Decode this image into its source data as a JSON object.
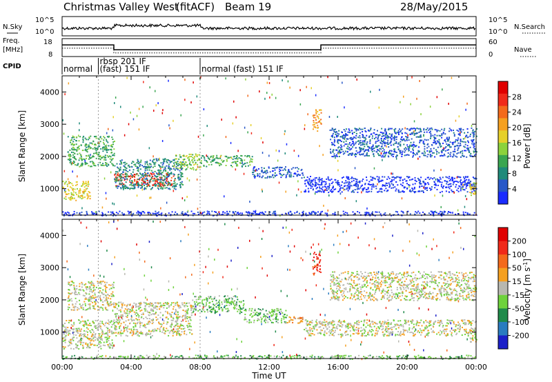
{
  "header": {
    "station": "Christmas Valley West",
    "mode": "(fitACF)",
    "beam": "Beam 19",
    "date": "28/May/2015"
  },
  "strip": {
    "nsky_label": "N.Sky",
    "nsky_ticks": [
      "10^5",
      "10^0"
    ],
    "nsearch_label": "N.Search",
    "nsearch_ticks": [
      "10^5",
      "10^0"
    ],
    "freq_label": "Freq.",
    "freq_unit": "[MHz]",
    "freq_ticks": [
      "18",
      "8"
    ],
    "nave_label": "Nave",
    "nave_ticks": [
      "60",
      "0"
    ],
    "cpid_label": "CPID",
    "cpid_segments": [
      {
        "start": 0.0,
        "end": 2.1,
        "label": "normal"
      },
      {
        "start": 2.1,
        "end": 8.0,
        "label": "rbsp 201 IF",
        "label2": "(fast) 151 IF"
      },
      {
        "start": 8.0,
        "end": 24.0,
        "label": "normal (fast) 151 IF"
      }
    ],
    "freq_mhz": [
      {
        "start": 0.0,
        "end": 3.0,
        "value": 14.5
      },
      {
        "start": 3.0,
        "end": 15.0,
        "value": 11.8
      },
      {
        "start": 15.0,
        "end": 24.0,
        "value": 14.5
      }
    ],
    "nave": [
      {
        "start": 0.0,
        "end": 3.0,
        "value": 28
      },
      {
        "start": 3.0,
        "end": 15.0,
        "value": 12
      },
      {
        "start": 15.0,
        "end": 24.0,
        "value": 28
      }
    ]
  },
  "chart_data": [
    {
      "type": "heatmap",
      "panel": "power",
      "xlabel": "Time UT",
      "ylabel": "Slant Range [km]",
      "xlim": [
        0,
        24
      ],
      "ylim": [
        180,
        4500
      ],
      "yticks": [
        1000,
        2000,
        3000,
        4000
      ],
      "colorbar": {
        "label": "Power [dB]",
        "ticks": [
          "4",
          "8",
          "12",
          "16",
          "20",
          "24",
          "28"
        ],
        "colors": [
          "#1a2cff",
          "#2858c8",
          "#1f8a7a",
          "#3aa650",
          "#8cd23c",
          "#e6d02a",
          "#f5a020",
          "#f36a1c",
          "#f02a1a",
          "#e00000"
        ]
      },
      "regions": [
        {
          "t0": 0.0,
          "t1": 1.6,
          "r0": 650,
          "r1": 1250,
          "level": 5
        },
        {
          "t0": 0.3,
          "t1": 3.0,
          "r0": 1700,
          "r1": 2650,
          "level": 3
        },
        {
          "t0": 3.0,
          "t1": 6.5,
          "r0": 1100,
          "r1": 1500,
          "level": 8
        },
        {
          "t0": 3.0,
          "t1": 7.0,
          "r0": 1000,
          "r1": 1950,
          "level": 2
        },
        {
          "t0": 6.5,
          "t1": 8.0,
          "r0": 1600,
          "r1": 2100,
          "level": 4
        },
        {
          "t0": 8.0,
          "t1": 11.0,
          "r0": 1700,
          "r1": 2050,
          "level": 3
        },
        {
          "t0": 11.0,
          "t1": 14.0,
          "r0": 1350,
          "r1": 1700,
          "level": 1
        },
        {
          "t0": 14.0,
          "t1": 24.0,
          "r0": 900,
          "r1": 1400,
          "level": 0
        },
        {
          "t0": 15.5,
          "t1": 24.0,
          "r0": 2000,
          "r1": 2900,
          "level": 1
        },
        {
          "t0": 14.5,
          "t1": 15.0,
          "r0": 2800,
          "r1": 3500,
          "level": 6
        },
        {
          "t0": 23.6,
          "t1": 24.0,
          "r0": 800,
          "r1": 1200,
          "level": 5
        },
        {
          "t0": 0.0,
          "t1": 24.0,
          "r0": 180,
          "r1": 320,
          "level": 0
        }
      ]
    },
    {
      "type": "heatmap",
      "panel": "velocity",
      "xlabel": "Time UT",
      "ylabel": "Slant Range [km]",
      "xlim": [
        0,
        24
      ],
      "ylim": [
        180,
        4500
      ],
      "yticks": [
        1000,
        2000,
        3000,
        4000
      ],
      "xticks": [
        "00:00",
        "04:00",
        "08:00",
        "12:00",
        "16:00",
        "20:00",
        "00:00"
      ],
      "colorbar": {
        "label": "Velocity [m s",
        "label_sup": "-1",
        "label_end": "]",
        "ticks": [
          "200",
          "100",
          "50",
          "15",
          "-15",
          "-50",
          "-100",
          "-200"
        ],
        "colors": [
          "#1c20c8",
          "#2a7cc0",
          "#1f8a4a",
          "#6ed23c",
          "#b8b8b0",
          "#f5a020",
          "#f36a1c",
          "#f02a1a",
          "#e00000"
        ]
      },
      "regions": [
        {
          "t0": 0.0,
          "t1": 3.0,
          "r0": 500,
          "r1": 1400,
          "level": 4
        },
        {
          "t0": 0.3,
          "t1": 3.0,
          "r0": 1700,
          "r1": 2600,
          "level": 4
        },
        {
          "t0": 3.0,
          "t1": 7.5,
          "r0": 900,
          "r1": 1950,
          "level": 4
        },
        {
          "t0": 7.5,
          "t1": 10.5,
          "r0": 1600,
          "r1": 2150,
          "level": 3
        },
        {
          "t0": 10.5,
          "t1": 13.0,
          "r0": 1300,
          "r1": 1750,
          "level": 3
        },
        {
          "t0": 13.0,
          "t1": 14.0,
          "r0": 1300,
          "r1": 1500,
          "level": 5
        },
        {
          "t0": 14.0,
          "t1": 24.0,
          "r0": 900,
          "r1": 1400,
          "level": 4
        },
        {
          "t0": 15.5,
          "t1": 24.0,
          "r0": 2000,
          "r1": 2900,
          "level": 4
        },
        {
          "t0": 14.5,
          "t1": 15.0,
          "r0": 2800,
          "r1": 3500,
          "level": 7
        },
        {
          "t0": 0.0,
          "t1": 24.0,
          "r0": 180,
          "r1": 300,
          "level": 3
        },
        {
          "t0": 23.6,
          "t1": 24.0,
          "r0": 700,
          "r1": 1200,
          "level": 4
        }
      ]
    }
  ]
}
